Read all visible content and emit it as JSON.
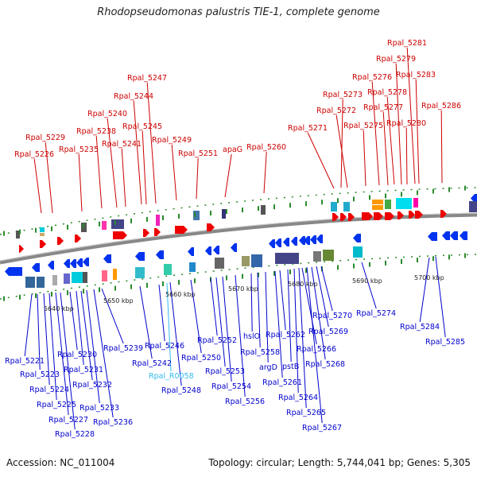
{
  "header": {
    "title": "Rhodopseudomonas palustris TIE-1, complete genome"
  },
  "footer": {
    "accession": "Accession: NC_011004",
    "summary": "Topology: circular; Length: 5,744,041 bp; Genes: 5,305"
  },
  "colors": {
    "top_label": "#cc0000",
    "bottom_label": "#0000cc",
    "rna_label": "#33bbee",
    "backbone": "#888888"
  },
  "ticks": [
    "5640 kbp",
    "5650 kbp",
    "5660 kbp",
    "5670 kbp",
    "5680 kbp",
    "5690 kbp",
    "5700 kbp"
  ],
  "top_genes": [
    "Rpal_5226",
    "Rpal_5229",
    "Rpal_5235",
    "Rpal_5238",
    "Rpal_5240",
    "Rpal_5241",
    "Rpal_5244",
    "Rpal_5245",
    "Rpal_5247",
    "Rpal_5249",
    "Rpal_5251",
    "apaG",
    "Rpal_5260",
    "Rpal_5271",
    "Rpal_5272",
    "Rpal_5273",
    "Rpal_5275",
    "Rpal_5276",
    "Rpal_5277",
    "Rpal_5278",
    "Rpal_5279",
    "Rpal_5280",
    "Rpal_5281",
    "Rpal_5283",
    "Rpal_5286"
  ],
  "bottom_genes": [
    "Rpal_5221",
    "Rpal_5223",
    "Rpal_5224",
    "Rpal_5225",
    "Rpal_5227",
    "Rpal_5228",
    "Rpal_5230",
    "Rpal_5231",
    "Rpal_5232",
    "Rpal_5233",
    "Rpal_5236",
    "Rpal_5239",
    "Rpal_5242",
    "Rpal_5246",
    "Rpal_R0058",
    "Rpal_5248",
    "Rpal_5250",
    "Rpal_5252",
    "Rpal_5253",
    "Rpal_5254",
    "Rpal_5256",
    "hslO",
    "Rpal_5258",
    "argD",
    "Rpal_5261",
    "Rpal_5262",
    "pstB",
    "Rpal_5264",
    "Rpal_5265",
    "Rpal_5266",
    "Rpal_5267",
    "Rpal_5268",
    "Rpal_5269",
    "Rpal_5270",
    "Rpal_5274",
    "Rpal_5284",
    "Rpal_5285"
  ]
}
